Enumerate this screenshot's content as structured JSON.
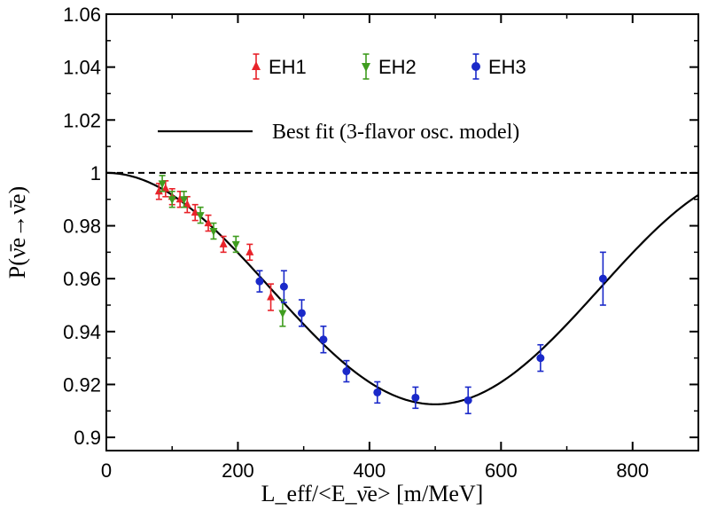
{
  "chart_data": {
    "type": "scatter",
    "title": "",
    "xlabel": "L_eff/<E_ν̄e> [m/MeV]",
    "ylabel": "P(ν̄e→ν̄e)",
    "xlim": [
      0,
      900
    ],
    "ylim": [
      0.895,
      1.06
    ],
    "xticks": [
      "0",
      "200",
      "400",
      "600",
      "800"
    ],
    "xtick_values": [
      0,
      200,
      400,
      600,
      800
    ],
    "yticks": [
      "0.9",
      "0.92",
      "0.94",
      "0.96",
      "0.98",
      "1",
      "1.02",
      "1.04",
      "1.06"
    ],
    "ytick_values": [
      0.9,
      0.92,
      0.94,
      0.96,
      0.98,
      1.0,
      1.02,
      1.04,
      1.06
    ],
    "reference_line": {
      "y": 1.0,
      "style": "dashed"
    },
    "series": [
      {
        "name": "EH1",
        "color": "#e8232a",
        "marker": "triangle-up",
        "points": [
          {
            "x": 80,
            "y": 0.993,
            "err": 0.003
          },
          {
            "x": 90,
            "y": 0.994,
            "err": 0.003
          },
          {
            "x": 100,
            "y": 0.991,
            "err": 0.003
          },
          {
            "x": 112,
            "y": 0.99,
            "err": 0.003
          },
          {
            "x": 123,
            "y": 0.988,
            "err": 0.003
          },
          {
            "x": 135,
            "y": 0.985,
            "err": 0.003
          },
          {
            "x": 155,
            "y": 0.981,
            "err": 0.003
          },
          {
            "x": 178,
            "y": 0.973,
            "err": 0.003
          },
          {
            "x": 218,
            "y": 0.97,
            "err": 0.003
          },
          {
            "x": 250,
            "y": 0.953,
            "err": 0.005
          }
        ]
      },
      {
        "name": "EH2",
        "color": "#3f9d1f",
        "marker": "triangle-down",
        "points": [
          {
            "x": 85,
            "y": 0.996,
            "err": 0.003
          },
          {
            "x": 100,
            "y": 0.99,
            "err": 0.003
          },
          {
            "x": 118,
            "y": 0.99,
            "err": 0.003
          },
          {
            "x": 143,
            "y": 0.984,
            "err": 0.003
          },
          {
            "x": 163,
            "y": 0.978,
            "err": 0.003
          },
          {
            "x": 197,
            "y": 0.973,
            "err": 0.003
          },
          {
            "x": 268,
            "y": 0.947,
            "err": 0.005
          }
        ]
      },
      {
        "name": "EH3",
        "color": "#1a29c9",
        "marker": "circle",
        "points": [
          {
            "x": 233,
            "y": 0.959,
            "err": 0.004
          },
          {
            "x": 270,
            "y": 0.957,
            "err": 0.006
          },
          {
            "x": 297,
            "y": 0.947,
            "err": 0.005
          },
          {
            "x": 330,
            "y": 0.937,
            "err": 0.005
          },
          {
            "x": 365,
            "y": 0.925,
            "err": 0.004
          },
          {
            "x": 412,
            "y": 0.917,
            "err": 0.004
          },
          {
            "x": 470,
            "y": 0.915,
            "err": 0.004
          },
          {
            "x": 550,
            "y": 0.914,
            "err": 0.005
          },
          {
            "x": 660,
            "y": 0.93,
            "err": 0.005
          },
          {
            "x": 755,
            "y": 0.96,
            "err": 0.01
          }
        ]
      }
    ],
    "fit": {
      "name": "Best fit (3-flavor osc. model)",
      "color": "#000000",
      "model": "1 - A*sin^2(pi*x/1000)",
      "amplitude": 0.0875,
      "period": 1000
    },
    "legend": {
      "position": "top",
      "entries": [
        "EH1",
        "EH2",
        "EH3",
        "Best fit (3-flavor osc. model)"
      ]
    }
  }
}
